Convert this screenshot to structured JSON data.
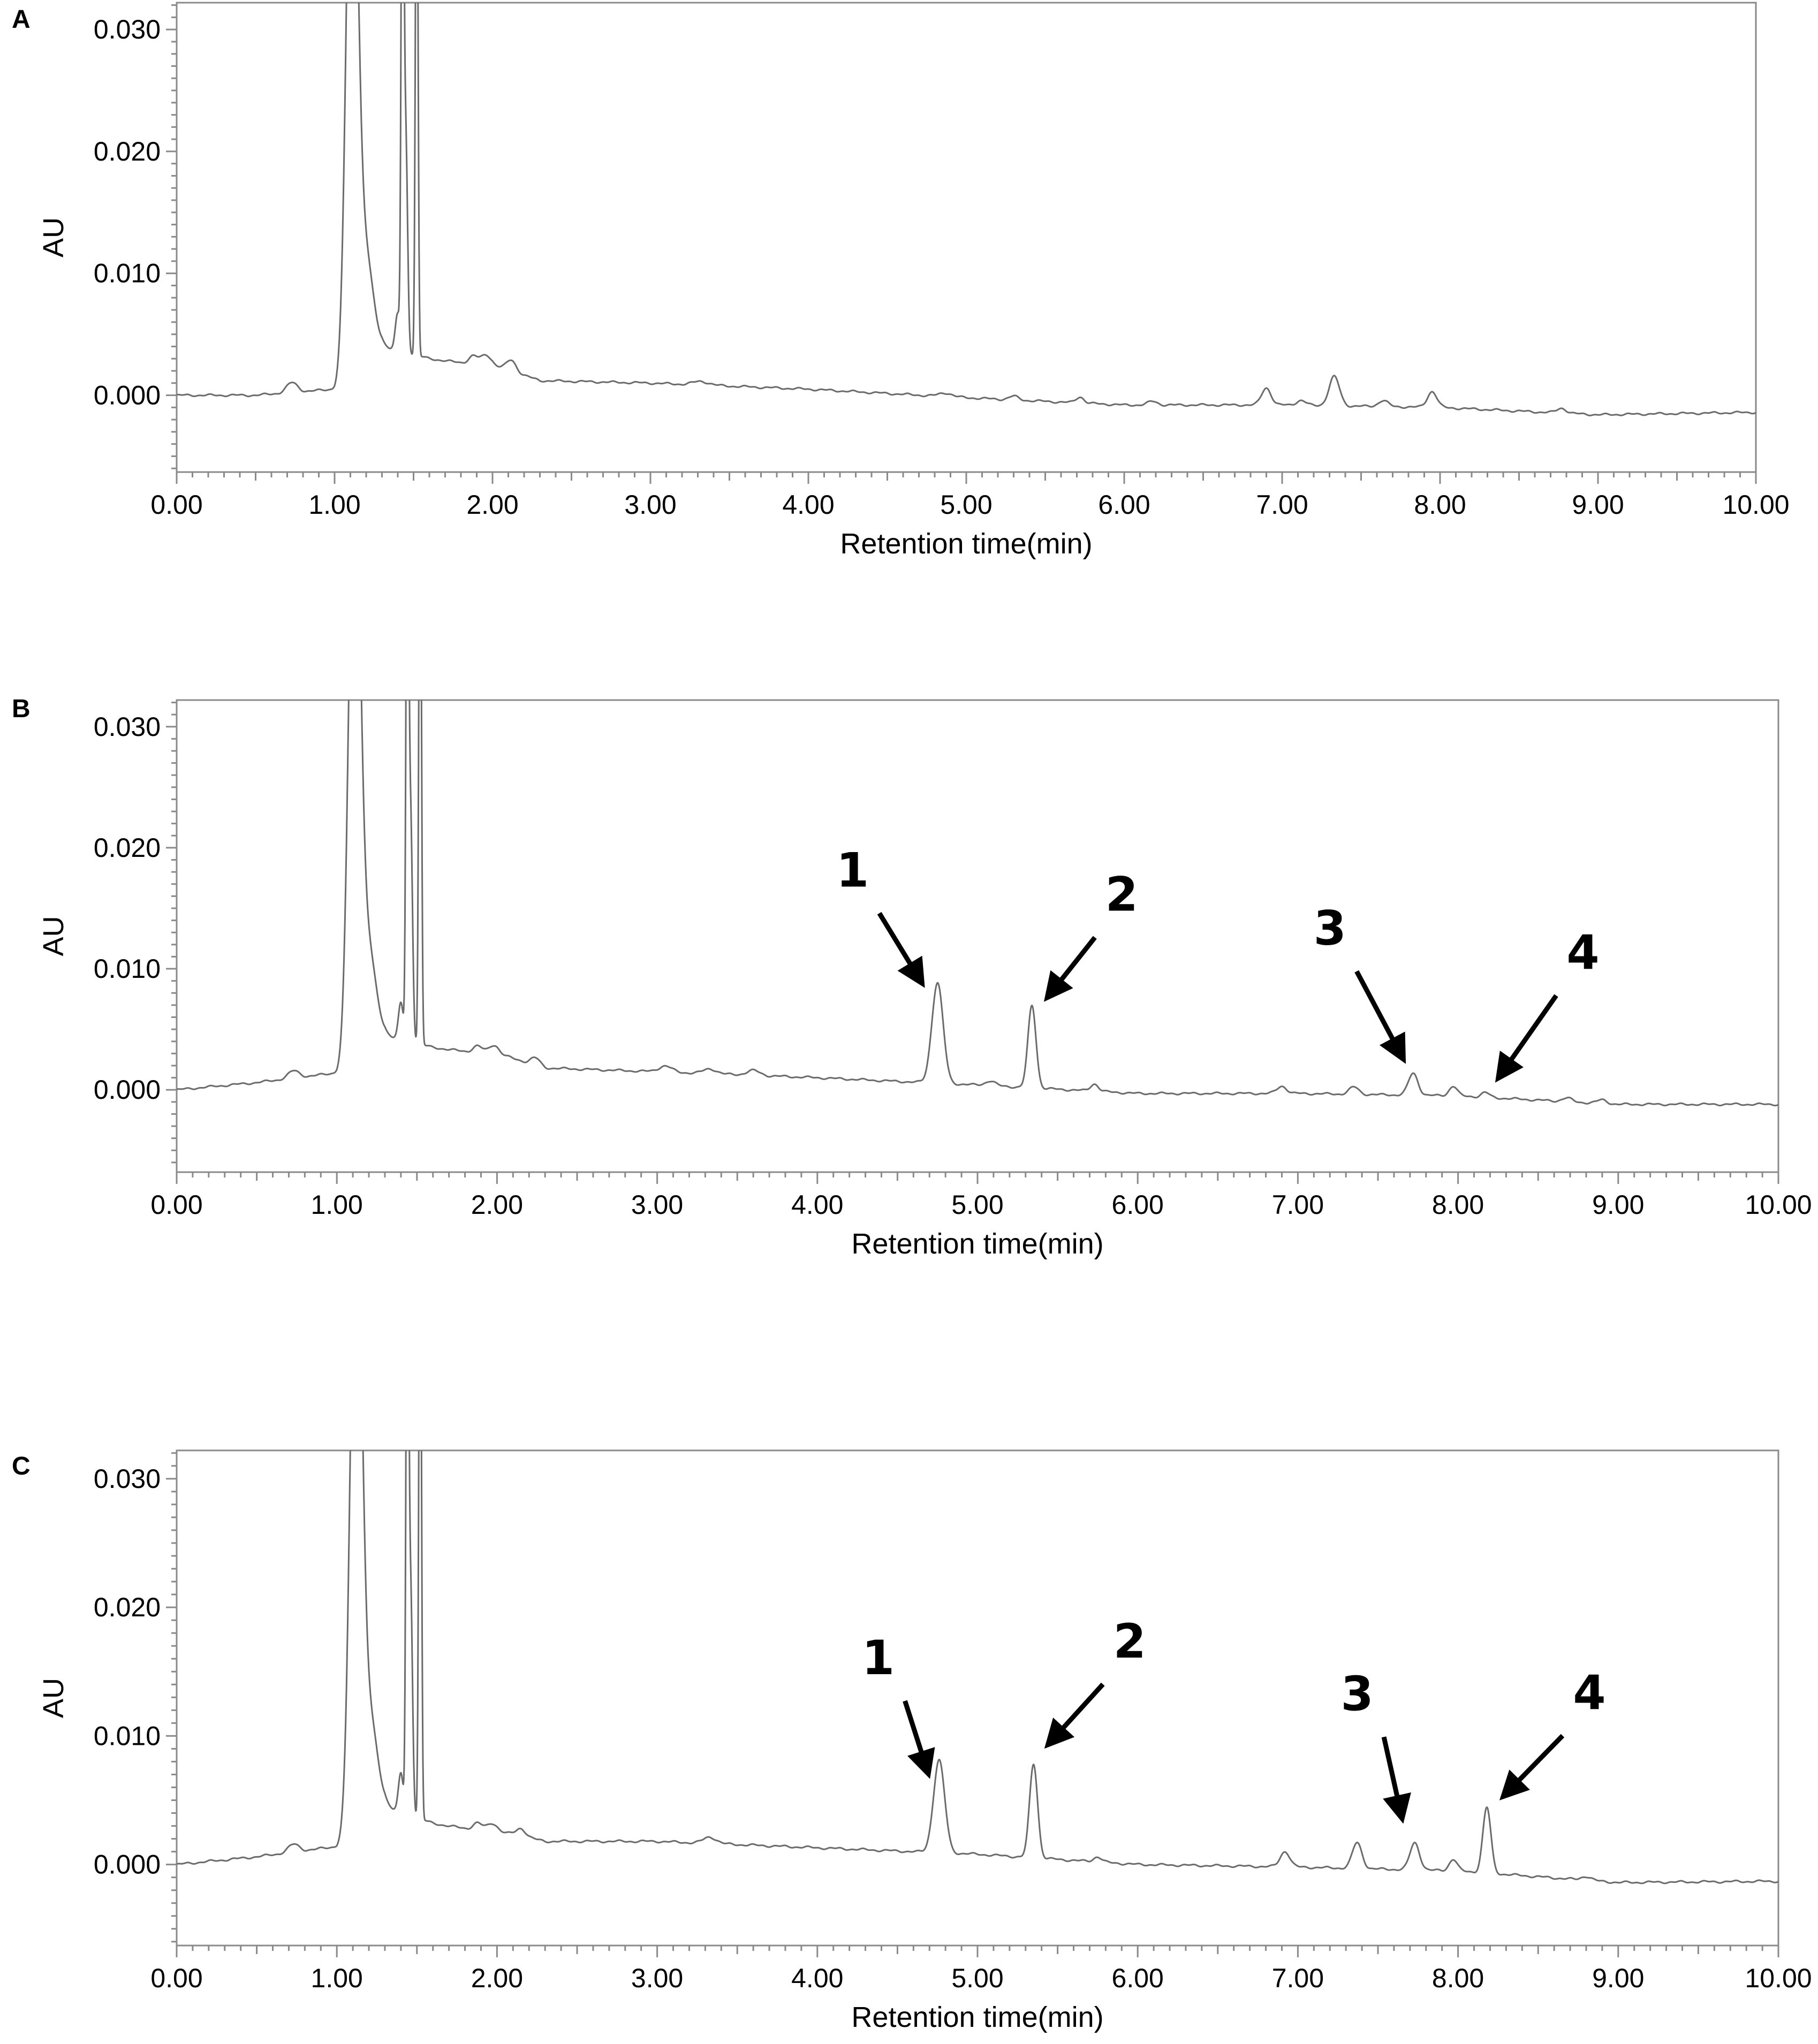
{
  "chart_data": [
    {
      "panel": "A",
      "type": "line",
      "xlabel": "Retention time(min)",
      "ylabel": "AU",
      "xlim": [
        0,
        10
      ],
      "ylim": [
        -0.0063,
        0.0322
      ],
      "x_ticks": [
        "0.00",
        "1.00",
        "2.00",
        "3.00",
        "4.00",
        "5.00",
        "6.00",
        "7.00",
        "8.00",
        "9.00",
        "10.00"
      ],
      "y_ticks": [
        "0.000",
        "0.010",
        "0.020",
        "0.030"
      ],
      "y_tick_values": [
        0,
        0.01,
        0.02,
        0.03
      ],
      "grid": false,
      "baseline": [
        [
          0,
          0
        ],
        [
          0.5,
          0
        ],
        [
          1.0,
          0.0005
        ],
        [
          1.3,
          0.004
        ],
        [
          1.6,
          0.003
        ],
        [
          1.9,
          0.0025
        ],
        [
          2.0,
          0.0025
        ],
        [
          2.3,
          0.0012
        ],
        [
          3,
          0.001
        ],
        [
          4,
          0.0005
        ],
        [
          5,
          -0.0002
        ],
        [
          6,
          -0.0008
        ],
        [
          7,
          -0.0008
        ],
        [
          8,
          -0.001
        ],
        [
          9,
          -0.0016
        ],
        [
          10,
          -0.0014
        ]
      ],
      "peaks": [
        {
          "rt": 0.73,
          "height": 0.0008,
          "width": 0.035
        },
        {
          "rt": 1.11,
          "height": 0.05,
          "width": 0.035
        },
        {
          "rt": 1.19,
          "height": 0.009,
          "width": 0.05
        },
        {
          "rt": 1.4,
          "height": 0.003,
          "width": 0.015
        },
        {
          "rt": 1.43,
          "height": 0.05,
          "width": 0.008
        },
        {
          "rt": 1.45,
          "height": 0.018,
          "width": 0.012
        },
        {
          "rt": 1.52,
          "height": 0.05,
          "width": 0.008
        },
        {
          "rt": 1.88,
          "height": 0.0007,
          "width": 0.03
        },
        {
          "rt": 1.96,
          "height": 0.0008,
          "width": 0.03
        },
        {
          "rt": 2.12,
          "height": 0.0009,
          "width": 0.03
        },
        {
          "rt": 3.32,
          "height": 0.0003,
          "width": 0.05
        },
        {
          "rt": 4.87,
          "height": 0.0003,
          "width": 0.04
        },
        {
          "rt": 5.3,
          "height": 0.0003,
          "width": 0.03
        },
        {
          "rt": 5.72,
          "height": 0.0005,
          "width": 0.025
        },
        {
          "rt": 6.18,
          "height": 0.0003,
          "width": 0.03
        },
        {
          "rt": 6.9,
          "height": 0.0014,
          "width": 0.03
        },
        {
          "rt": 7.12,
          "height": 0.0004,
          "width": 0.03
        },
        {
          "rt": 7.33,
          "height": 0.0024,
          "width": 0.033
        },
        {
          "rt": 7.64,
          "height": 0.0005,
          "width": 0.03
        },
        {
          "rt": 7.95,
          "height": 0.0013,
          "width": 0.03
        },
        {
          "rt": 8.77,
          "height": 0.0004,
          "width": 0.03
        }
      ],
      "annotations": []
    },
    {
      "panel": "B",
      "type": "line",
      "xlabel": "Retention time(min)",
      "ylabel": "AU",
      "xlim": [
        0,
        10
      ],
      "ylim": [
        -0.0068,
        0.0322
      ],
      "x_ticks": [
        "0.00",
        "1.00",
        "2.00",
        "3.00",
        "4.00",
        "5.00",
        "6.00",
        "7.00",
        "8.00",
        "9.00",
        "10.00"
      ],
      "y_ticks": [
        "0.000",
        "0.010",
        "0.020",
        "0.030"
      ],
      "y_tick_values": [
        0,
        0.01,
        0.02,
        0.03
      ],
      "grid": false,
      "baseline": [
        [
          0,
          0
        ],
        [
          0.5,
          0.0006
        ],
        [
          1.0,
          0.0014
        ],
        [
          1.3,
          0.0045
        ],
        [
          1.6,
          0.0035
        ],
        [
          1.9,
          0.003
        ],
        [
          2.0,
          0.003
        ],
        [
          2.3,
          0.0018
        ],
        [
          3,
          0.0015
        ],
        [
          4,
          0.001
        ],
        [
          5,
          0.0004
        ],
        [
          6,
          -0.0003
        ],
        [
          7,
          -0.0003
        ],
        [
          8,
          -0.0005
        ],
        [
          9,
          -0.0012
        ],
        [
          10,
          -0.0012
        ]
      ],
      "peaks": [
        {
          "rt": 0.73,
          "height": 0.0006,
          "width": 0.035
        },
        {
          "rt": 1.11,
          "height": 0.05,
          "width": 0.035
        },
        {
          "rt": 1.19,
          "height": 0.0085,
          "width": 0.05
        },
        {
          "rt": 1.4,
          "height": 0.003,
          "width": 0.015
        },
        {
          "rt": 1.44,
          "height": 0.05,
          "width": 0.008
        },
        {
          "rt": 1.46,
          "height": 0.019,
          "width": 0.012
        },
        {
          "rt": 1.52,
          "height": 0.05,
          "width": 0.008
        },
        {
          "rt": 1.88,
          "height": 0.0006,
          "width": 0.03
        },
        {
          "rt": 1.98,
          "height": 0.0007,
          "width": 0.03
        },
        {
          "rt": 2.24,
          "height": 0.0006,
          "width": 0.03
        },
        {
          "rt": 3.05,
          "height": 0.0005,
          "width": 0.04
        },
        {
          "rt": 3.33,
          "height": 0.0004,
          "width": 0.04
        },
        {
          "rt": 3.6,
          "height": 0.0004,
          "width": 0.04
        },
        {
          "rt": 4.75,
          "height": 0.0083,
          "width": 0.035
        },
        {
          "rt": 5.08,
          "height": 0.0004,
          "width": 0.03
        },
        {
          "rt": 5.34,
          "height": 0.0068,
          "width": 0.025
        },
        {
          "rt": 5.73,
          "height": 0.0006,
          "width": 0.025
        },
        {
          "rt": 6.9,
          "height": 0.0006,
          "width": 0.03
        },
        {
          "rt": 7.35,
          "height": 0.0006,
          "width": 0.03
        },
        {
          "rt": 7.72,
          "height": 0.0018,
          "width": 0.03
        },
        {
          "rt": 7.97,
          "height": 0.0008,
          "width": 0.025
        },
        {
          "rt": 8.17,
          "height": 0.0004,
          "width": 0.025
        },
        {
          "rt": 8.68,
          "height": 0.0003,
          "width": 0.03
        },
        {
          "rt": 8.9,
          "height": 0.0003,
          "width": 0.03
        }
      ],
      "annotations": [
        {
          "label": "1",
          "target": [
            4.7,
            0.0078
          ],
          "label_pos": [
            4.22,
            0.0168
          ]
        },
        {
          "label": "2",
          "target": [
            5.38,
            0.0067
          ],
          "label_pos": [
            5.9,
            0.0148
          ]
        },
        {
          "label": "3",
          "target": [
            7.7,
            0.0015
          ],
          "label_pos": [
            7.2,
            0.012
          ]
        },
        {
          "label": "4",
          "target": [
            8.2,
            0.0
          ],
          "label_pos": [
            8.78,
            0.01
          ]
        }
      ]
    },
    {
      "panel": "C",
      "type": "line",
      "xlabel": "Retention time(min)",
      "ylabel": "AU",
      "xlim": [
        0,
        10
      ],
      "ylim": [
        -0.0063,
        0.0322
      ],
      "x_ticks": [
        "0.00",
        "1.00",
        "2.00",
        "3.00",
        "4.00",
        "5.00",
        "6.00",
        "7.00",
        "8.00",
        "9.00",
        "10.00"
      ],
      "y_ticks": [
        "0.000",
        "0.010",
        "0.020",
        "0.030"
      ],
      "y_tick_values": [
        0,
        0.01,
        0.02,
        0.03
      ],
      "grid": false,
      "baseline": [
        [
          0,
          0
        ],
        [
          0.5,
          0.0006
        ],
        [
          1.0,
          0.0014
        ],
        [
          1.3,
          0.0045
        ],
        [
          1.6,
          0.0032
        ],
        [
          1.9,
          0.0026
        ],
        [
          2.0,
          0.0026
        ],
        [
          2.3,
          0.0018
        ],
        [
          3,
          0.0018
        ],
        [
          4,
          0.0013
        ],
        [
          5,
          0.0008
        ],
        [
          6,
          0.0
        ],
        [
          7,
          -0.0002
        ],
        [
          8,
          -0.0005
        ],
        [
          9,
          -0.0014
        ],
        [
          10,
          -0.0013
        ]
      ],
      "peaks": [
        {
          "rt": 0.73,
          "height": 0.0006,
          "width": 0.035
        },
        {
          "rt": 1.12,
          "height": 0.05,
          "width": 0.035
        },
        {
          "rt": 1.2,
          "height": 0.008,
          "width": 0.05
        },
        {
          "rt": 1.4,
          "height": 0.003,
          "width": 0.015
        },
        {
          "rt": 1.44,
          "height": 0.05,
          "width": 0.008
        },
        {
          "rt": 1.46,
          "height": 0.018,
          "width": 0.012
        },
        {
          "rt": 1.52,
          "height": 0.05,
          "width": 0.008
        },
        {
          "rt": 1.88,
          "height": 0.0006,
          "width": 0.03
        },
        {
          "rt": 1.97,
          "height": 0.0006,
          "width": 0.03
        },
        {
          "rt": 2.15,
          "height": 0.0006,
          "width": 0.03
        },
        {
          "rt": 3.33,
          "height": 0.0005,
          "width": 0.04
        },
        {
          "rt": 4.76,
          "height": 0.0072,
          "width": 0.035
        },
        {
          "rt": 5.35,
          "height": 0.0073,
          "width": 0.025
        },
        {
          "rt": 5.75,
          "height": 0.0004,
          "width": 0.025
        },
        {
          "rt": 6.92,
          "height": 0.0012,
          "width": 0.03
        },
        {
          "rt": 7.37,
          "height": 0.002,
          "width": 0.03
        },
        {
          "rt": 7.73,
          "height": 0.0021,
          "width": 0.03
        },
        {
          "rt": 7.97,
          "height": 0.0009,
          "width": 0.025
        },
        {
          "rt": 8.18,
          "height": 0.0051,
          "width": 0.025
        },
        {
          "rt": 8.8,
          "height": 0.0003,
          "width": 0.03
        }
      ],
      "annotations": [
        {
          "label": "1",
          "target": [
            4.72,
            0.006
          ],
          "label_pos": [
            4.38,
            0.0148
          ]
        },
        {
          "label": "2",
          "target": [
            5.38,
            0.0085
          ],
          "label_pos": [
            5.95,
            0.0161
          ]
        },
        {
          "label": "3",
          "target": [
            7.67,
            0.0025
          ],
          "label_pos": [
            7.37,
            0.012
          ]
        },
        {
          "label": "4",
          "target": [
            8.22,
            0.0045
          ],
          "label_pos": [
            8.82,
            0.0121
          ]
        }
      ]
    }
  ]
}
